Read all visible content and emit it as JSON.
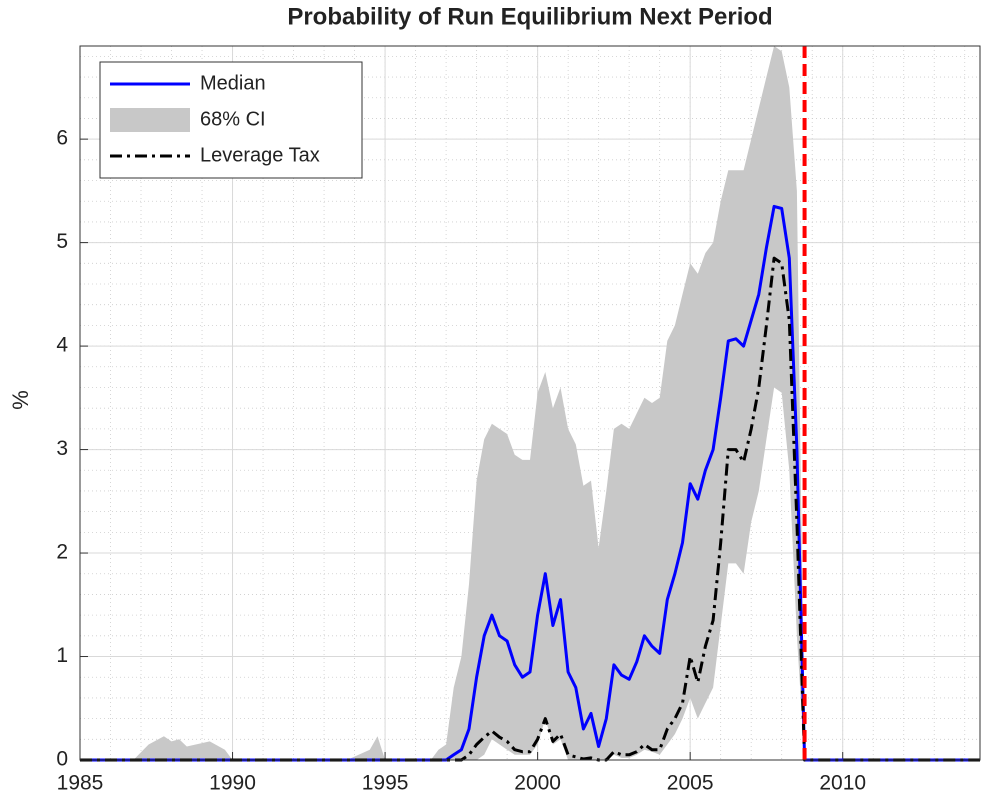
{
  "chart_data": {
    "type": "line",
    "title": "Probability of Run Equilibrium Next Period",
    "y_label": "%",
    "x": [
      1985,
      1986.75,
      1987.25,
      1987.75,
      1988,
      1988.25,
      1988.5,
      1989.25,
      1989.75,
      1990,
      1993.75,
      1994.5,
      1994.75,
      1995,
      1996.5,
      1996.75,
      1997,
      1997.25,
      1997.5,
      1997.75,
      1998,
      1998.25,
      1998.5,
      1998.75,
      1999,
      1999.25,
      1999.5,
      1999.75,
      2000,
      2000.25,
      2000.5,
      2000.75,
      2001,
      2001.25,
      2001.5,
      2001.75,
      2002,
      2002.25,
      2002.5,
      2002.75,
      2003,
      2003.25,
      2003.5,
      2003.75,
      2004,
      2004.25,
      2004.5,
      2004.75,
      2005,
      2005.25,
      2005.5,
      2005.75,
      2006,
      2006.25,
      2006.5,
      2006.75,
      2007,
      2007.25,
      2007.5,
      2007.75,
      2008,
      2008.25,
      2008.5,
      2008.75,
      2014.5
    ],
    "series": [
      {
        "name": "Median",
        "kind": "line",
        "color": "#0000ff",
        "values": [
          0,
          0,
          0,
          0,
          0,
          0,
          0,
          0,
          0,
          0,
          0,
          0,
          0,
          0,
          0,
          0,
          0,
          0.05,
          0.1,
          0.3,
          0.8,
          1.2,
          1.4,
          1.2,
          1.15,
          0.92,
          0.8,
          0.85,
          1.4,
          1.8,
          1.3,
          1.55,
          0.85,
          0.7,
          0.3,
          0.45,
          0.13,
          0.4,
          0.92,
          0.82,
          0.78,
          0.95,
          1.2,
          1.1,
          1.03,
          1.55,
          1.8,
          2.1,
          2.67,
          2.52,
          2.8,
          3.0,
          3.5,
          4.05,
          4.07,
          4.0,
          4.25,
          4.5,
          4.95,
          5.35,
          5.33,
          4.85,
          3.0,
          0,
          0
        ]
      },
      {
        "name": "68% CI",
        "kind": "band",
        "color": "#c8c8c8",
        "upper": [
          0,
          0,
          0.15,
          0.23,
          0.18,
          0.2,
          0.13,
          0.18,
          0.1,
          0,
          0,
          0.1,
          0.23,
          0,
          0,
          0.1,
          0.15,
          0.7,
          1.0,
          1.7,
          2.7,
          3.1,
          3.25,
          3.2,
          3.15,
          2.95,
          2.9,
          2.9,
          3.55,
          3.75,
          3.4,
          3.6,
          3.2,
          3.05,
          2.65,
          2.7,
          2.05,
          2.6,
          3.2,
          3.25,
          3.2,
          3.35,
          3.5,
          3.45,
          3.5,
          4.05,
          4.2,
          4.5,
          4.8,
          4.7,
          4.9,
          5.0,
          5.4,
          5.7,
          5.7,
          5.7,
          6.0,
          6.3,
          6.6,
          6.9,
          6.85,
          6.5,
          5.5,
          0,
          0
        ],
        "lower": [
          0,
          0,
          0,
          0,
          0,
          0,
          0,
          0,
          0,
          0,
          0,
          0,
          0,
          0,
          0,
          0,
          0,
          0,
          0,
          0,
          0,
          0.05,
          0.2,
          0.15,
          0.1,
          0.05,
          0.05,
          0.05,
          0.15,
          0.4,
          0.15,
          0.2,
          0,
          0,
          0,
          0,
          0,
          0,
          0.05,
          0.02,
          0.02,
          0.05,
          0.1,
          0.08,
          0.05,
          0.15,
          0.25,
          0.4,
          0.6,
          0.4,
          0.55,
          0.7,
          1.3,
          1.9,
          1.9,
          1.8,
          2.3,
          2.6,
          3.1,
          3.6,
          3.55,
          2.8,
          1.2,
          0,
          0
        ]
      },
      {
        "name": "Leverage Tax",
        "kind": "dashdot",
        "color": "#000000",
        "values": [
          0,
          0,
          0,
          0,
          0,
          0,
          0,
          0,
          0,
          0,
          0,
          0,
          0,
          0,
          0,
          0,
          0,
          0,
          0,
          0.05,
          0.15,
          0.22,
          0.28,
          0.22,
          0.18,
          0.1,
          0.08,
          0.08,
          0.2,
          0.4,
          0.18,
          0.25,
          0.05,
          0.03,
          0.01,
          0.02,
          0,
          0,
          0.08,
          0.05,
          0.05,
          0.08,
          0.15,
          0.1,
          0.1,
          0.3,
          0.4,
          0.55,
          1.0,
          0.75,
          1.1,
          1.35,
          2.1,
          3.0,
          3.0,
          2.88,
          3.2,
          3.6,
          4.2,
          4.85,
          4.8,
          4.25,
          2.3,
          0,
          0
        ]
      }
    ],
    "vline": {
      "x": 2008.75,
      "color": "#ff0000"
    },
    "xlim": [
      1985,
      2014.5
    ],
    "ylim": [
      0,
      6.9
    ],
    "xticks": [
      1985,
      1990,
      1995,
      2000,
      2005,
      2010
    ],
    "yticks": [
      0,
      1,
      2,
      3,
      4,
      5,
      6
    ],
    "grid": true,
    "minor_grid": true,
    "legend_position": "upper-left"
  }
}
